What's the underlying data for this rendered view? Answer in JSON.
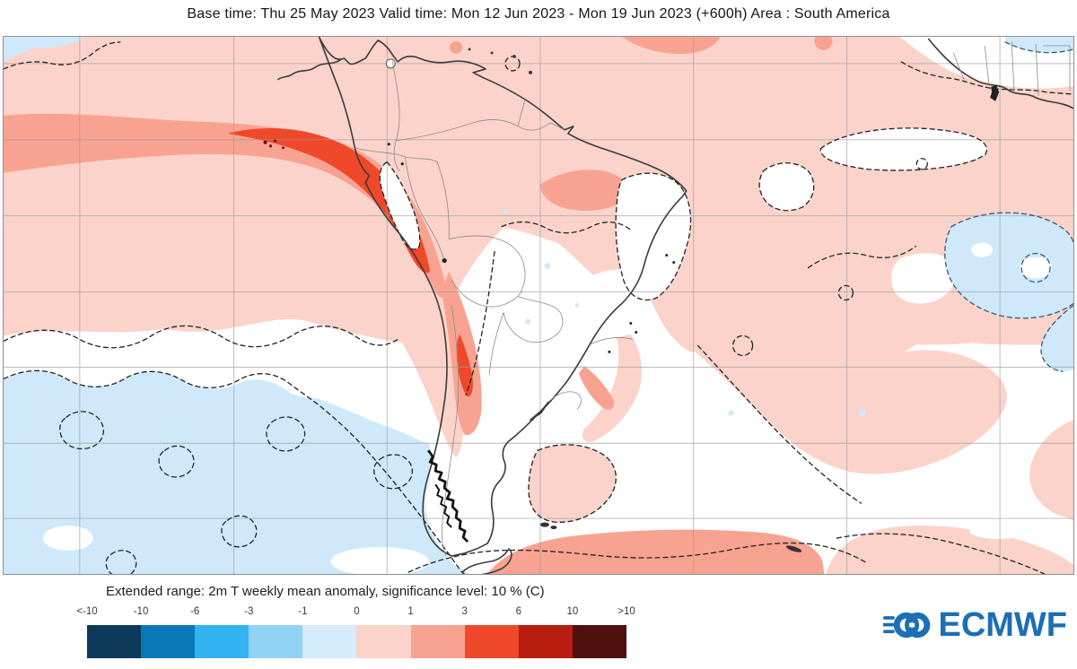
{
  "header": {
    "title": "Base time: Thu 25 May 2023 Valid time: Mon 12 Jun 2023 - Mon 19 Jun 2023 (+600h) Area : South America"
  },
  "legend": {
    "title": "Extended range: 2m T weekly mean anomaly, significance level: 10 % (C)",
    "tick_labels": [
      "<-10",
      "-10",
      "-6",
      "-3",
      "-1",
      "0",
      "1",
      "3",
      "6",
      "10",
      ">10"
    ],
    "swatch_colors": [
      "#0d3a5a",
      "#0a78b5",
      "#33b4f2",
      "#92d3f5",
      "#d4ecfb",
      "#fbd3ca",
      "#f8a392",
      "#f0482a",
      "#b81d0f",
      "#4f100e"
    ],
    "units": "C"
  },
  "map": {
    "palette": {
      "anomaly_0_to_1": "#fbd3ca",
      "anomaly_1_to_3": "#f8a392",
      "anomaly_3_to_6": "#f0482a",
      "anomaly_minus1_to_0": "#d4ecfb",
      "not_significant": "#ffffff",
      "coastline": "#3b3b3b",
      "gridline": "#9a9a9a"
    }
  },
  "branding": {
    "logo_text": "ECMWF",
    "logo_color": "#1b6fb5"
  }
}
